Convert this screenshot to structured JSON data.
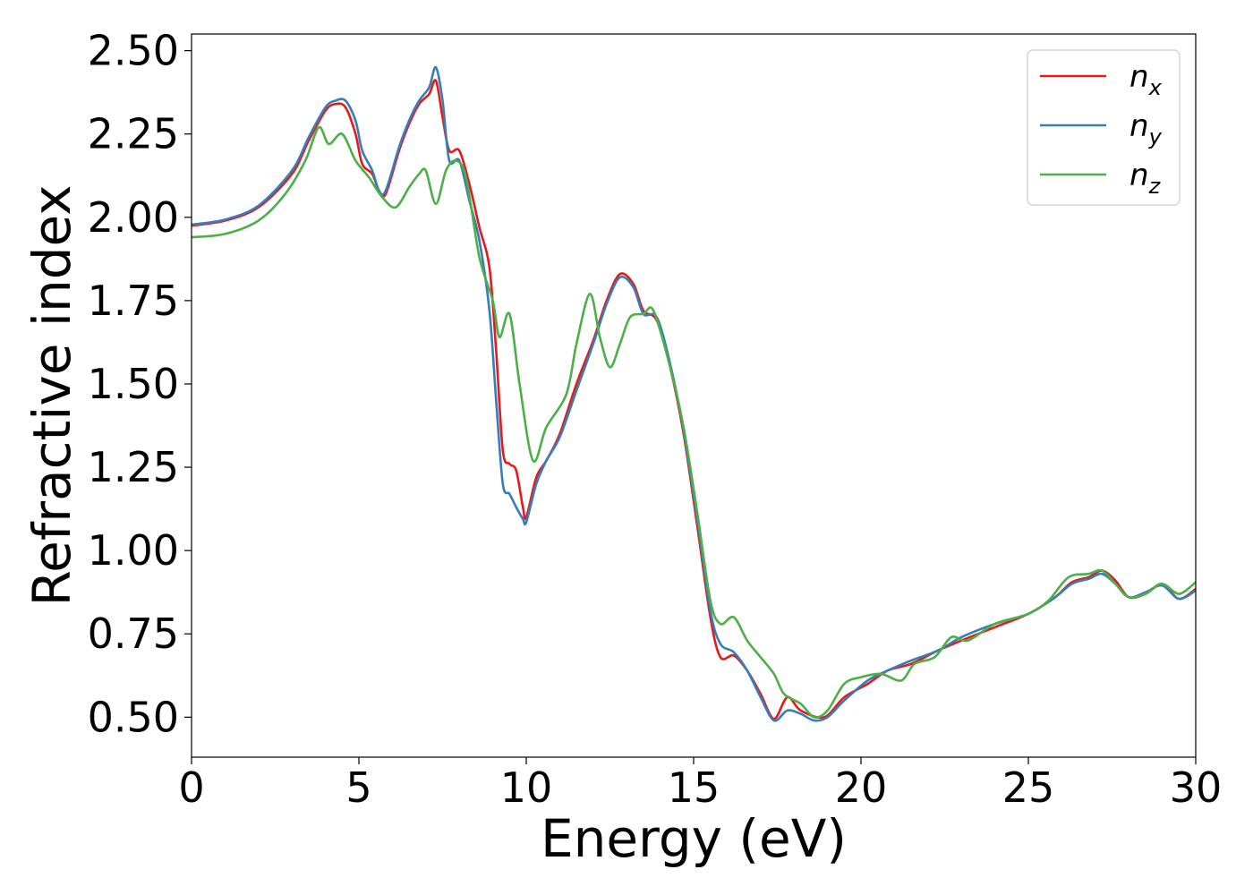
{
  "chart_data": {
    "type": "line",
    "title": "",
    "xlabel": "Energy (eV)",
    "ylabel": "Refractive index",
    "xlim": [
      0,
      30
    ],
    "ylim": [
      0.38,
      2.55
    ],
    "xticks": [
      0,
      5,
      10,
      15,
      20,
      25,
      30
    ],
    "xtick_labels": [
      "0",
      "5",
      "10",
      "15",
      "20",
      "25",
      "30"
    ],
    "yticks": [
      0.5,
      0.75,
      1.0,
      1.25,
      1.5,
      1.75,
      2.0,
      2.25,
      2.5
    ],
    "ytick_labels": [
      "0.50",
      "0.75",
      "1.00",
      "1.25",
      "1.50",
      "1.75",
      "2.00",
      "2.25",
      "2.50"
    ],
    "grid": false,
    "legend_position": "top-right",
    "series": [
      {
        "name": "n_x",
        "label_base": "n",
        "label_sub": "x",
        "color": "#e41a1c",
        "points": [
          [
            0,
            1.975
          ],
          [
            1,
            1.99
          ],
          [
            2,
            2.03
          ],
          [
            3,
            2.13
          ],
          [
            3.5,
            2.23
          ],
          [
            4,
            2.32
          ],
          [
            4.3,
            2.34
          ],
          [
            4.6,
            2.33
          ],
          [
            4.9,
            2.25
          ],
          [
            5.1,
            2.16
          ],
          [
            5.4,
            2.13
          ],
          [
            5.6,
            2.08
          ],
          [
            5.8,
            2.07
          ],
          [
            6.2,
            2.2
          ],
          [
            6.5,
            2.28
          ],
          [
            6.8,
            2.34
          ],
          [
            7.1,
            2.37
          ],
          [
            7.3,
            2.41
          ],
          [
            7.5,
            2.3
          ],
          [
            7.7,
            2.2
          ],
          [
            8.0,
            2.2
          ],
          [
            8.3,
            2.1
          ],
          [
            8.6,
            1.97
          ],
          [
            8.9,
            1.85
          ],
          [
            9.1,
            1.6
          ],
          [
            9.3,
            1.3
          ],
          [
            9.5,
            1.26
          ],
          [
            9.7,
            1.24
          ],
          [
            9.9,
            1.13
          ],
          [
            10.0,
            1.1
          ],
          [
            10.3,
            1.22
          ],
          [
            10.6,
            1.27
          ],
          [
            11.0,
            1.35
          ],
          [
            11.5,
            1.5
          ],
          [
            12.0,
            1.63
          ],
          [
            12.4,
            1.75
          ],
          [
            12.8,
            1.83
          ],
          [
            13.2,
            1.8
          ],
          [
            13.5,
            1.72
          ],
          [
            13.9,
            1.69
          ],
          [
            14.3,
            1.55
          ],
          [
            14.7,
            1.35
          ],
          [
            15.1,
            1.08
          ],
          [
            15.5,
            0.8
          ],
          [
            15.8,
            0.68
          ],
          [
            16.2,
            0.685
          ],
          [
            16.6,
            0.64
          ],
          [
            17.0,
            0.57
          ],
          [
            17.4,
            0.495
          ],
          [
            17.8,
            0.56
          ],
          [
            18.2,
            0.52
          ],
          [
            18.9,
            0.5
          ],
          [
            19.5,
            0.56
          ],
          [
            20.2,
            0.6
          ],
          [
            20.8,
            0.64
          ],
          [
            21.5,
            0.66
          ],
          [
            22.3,
            0.7
          ],
          [
            23.0,
            0.73
          ],
          [
            24.0,
            0.77
          ],
          [
            25.0,
            0.81
          ],
          [
            25.8,
            0.86
          ],
          [
            26.3,
            0.905
          ],
          [
            26.8,
            0.92
          ],
          [
            27.2,
            0.94
          ],
          [
            27.6,
            0.91
          ],
          [
            28.0,
            0.86
          ],
          [
            28.5,
            0.87
          ],
          [
            29.0,
            0.9
          ],
          [
            29.5,
            0.855
          ],
          [
            30.0,
            0.885
          ]
        ]
      },
      {
        "name": "n_y",
        "label_base": "n",
        "label_sub": "y",
        "color": "#377eb8",
        "points": [
          [
            0,
            1.978
          ],
          [
            1,
            1.993
          ],
          [
            2,
            2.035
          ],
          [
            3,
            2.14
          ],
          [
            3.5,
            2.24
          ],
          [
            4,
            2.33
          ],
          [
            4.3,
            2.35
          ],
          [
            4.6,
            2.35
          ],
          [
            4.9,
            2.29
          ],
          [
            5.1,
            2.2
          ],
          [
            5.4,
            2.14
          ],
          [
            5.6,
            2.08
          ],
          [
            5.8,
            2.08
          ],
          [
            6.2,
            2.21
          ],
          [
            6.5,
            2.29
          ],
          [
            6.8,
            2.35
          ],
          [
            7.1,
            2.39
          ],
          [
            7.3,
            2.45
          ],
          [
            7.5,
            2.35
          ],
          [
            7.7,
            2.17
          ],
          [
            8.0,
            2.17
          ],
          [
            8.3,
            2.05
          ],
          [
            8.6,
            1.93
          ],
          [
            8.9,
            1.72
          ],
          [
            9.1,
            1.45
          ],
          [
            9.3,
            1.2
          ],
          [
            9.5,
            1.17
          ],
          [
            9.7,
            1.13
          ],
          [
            9.9,
            1.095
          ],
          [
            10.0,
            1.085
          ],
          [
            10.3,
            1.2
          ],
          [
            10.6,
            1.27
          ],
          [
            11.0,
            1.34
          ],
          [
            11.5,
            1.48
          ],
          [
            12.0,
            1.62
          ],
          [
            12.4,
            1.74
          ],
          [
            12.8,
            1.82
          ],
          [
            13.2,
            1.79
          ],
          [
            13.5,
            1.71
          ],
          [
            13.9,
            1.7
          ],
          [
            14.3,
            1.56
          ],
          [
            14.7,
            1.36
          ],
          [
            15.1,
            1.1
          ],
          [
            15.5,
            0.82
          ],
          [
            15.8,
            0.72
          ],
          [
            16.2,
            0.695
          ],
          [
            16.6,
            0.64
          ],
          [
            17.0,
            0.56
          ],
          [
            17.4,
            0.49
          ],
          [
            17.8,
            0.52
          ],
          [
            18.2,
            0.51
          ],
          [
            18.6,
            0.49
          ],
          [
            19.0,
            0.5
          ],
          [
            19.5,
            0.55
          ],
          [
            20.2,
            0.61
          ],
          [
            20.8,
            0.64
          ],
          [
            21.5,
            0.67
          ],
          [
            22.3,
            0.7
          ],
          [
            23.0,
            0.74
          ],
          [
            24.0,
            0.78
          ],
          [
            25.0,
            0.81
          ],
          [
            25.8,
            0.86
          ],
          [
            26.3,
            0.9
          ],
          [
            26.8,
            0.915
          ],
          [
            27.2,
            0.93
          ],
          [
            27.6,
            0.9
          ],
          [
            28.0,
            0.86
          ],
          [
            28.5,
            0.875
          ],
          [
            29.0,
            0.895
          ],
          [
            29.5,
            0.855
          ],
          [
            30.0,
            0.88
          ]
        ]
      },
      {
        "name": "n_z",
        "label_base": "n",
        "label_sub": "z",
        "color": "#4daf4a",
        "points": [
          [
            0,
            1.94
          ],
          [
            1,
            1.95
          ],
          [
            2,
            1.99
          ],
          [
            2.8,
            2.07
          ],
          [
            3.4,
            2.17
          ],
          [
            3.8,
            2.27
          ],
          [
            4.1,
            2.22
          ],
          [
            4.5,
            2.25
          ],
          [
            4.9,
            2.17
          ],
          [
            5.3,
            2.12
          ],
          [
            5.7,
            2.06
          ],
          [
            6.1,
            2.03
          ],
          [
            6.5,
            2.09
          ],
          [
            6.8,
            2.13
          ],
          [
            7.0,
            2.14
          ],
          [
            7.3,
            2.04
          ],
          [
            7.6,
            2.14
          ],
          [
            7.9,
            2.17
          ],
          [
            8.2,
            2.12
          ],
          [
            8.6,
            1.88
          ],
          [
            9.0,
            1.75
          ],
          [
            9.2,
            1.64
          ],
          [
            9.5,
            1.71
          ],
          [
            9.8,
            1.5
          ],
          [
            10.2,
            1.27
          ],
          [
            10.6,
            1.37
          ],
          [
            11.2,
            1.47
          ],
          [
            11.5,
            1.62
          ],
          [
            11.9,
            1.77
          ],
          [
            12.2,
            1.64
          ],
          [
            12.5,
            1.55
          ],
          [
            12.8,
            1.62
          ],
          [
            13.1,
            1.7
          ],
          [
            13.5,
            1.71
          ],
          [
            13.8,
            1.72
          ],
          [
            14.3,
            1.55
          ],
          [
            14.7,
            1.37
          ],
          [
            15.1,
            1.12
          ],
          [
            15.5,
            0.85
          ],
          [
            15.8,
            0.78
          ],
          [
            16.2,
            0.8
          ],
          [
            16.6,
            0.73
          ],
          [
            17.0,
            0.68
          ],
          [
            17.4,
            0.63
          ],
          [
            17.7,
            0.57
          ],
          [
            18.2,
            0.54
          ],
          [
            18.6,
            0.5
          ],
          [
            19.0,
            0.52
          ],
          [
            19.5,
            0.6
          ],
          [
            20.0,
            0.62
          ],
          [
            20.6,
            0.63
          ],
          [
            21.2,
            0.61
          ],
          [
            21.6,
            0.66
          ],
          [
            22.2,
            0.68
          ],
          [
            22.7,
            0.74
          ],
          [
            23.2,
            0.73
          ],
          [
            24.0,
            0.78
          ],
          [
            25.0,
            0.81
          ],
          [
            25.6,
            0.85
          ],
          [
            26.2,
            0.92
          ],
          [
            26.8,
            0.93
          ],
          [
            27.2,
            0.94
          ],
          [
            27.6,
            0.9
          ],
          [
            28.0,
            0.86
          ],
          [
            28.5,
            0.87
          ],
          [
            29.0,
            0.9
          ],
          [
            29.5,
            0.87
          ],
          [
            30.0,
            0.905
          ]
        ]
      }
    ]
  }
}
